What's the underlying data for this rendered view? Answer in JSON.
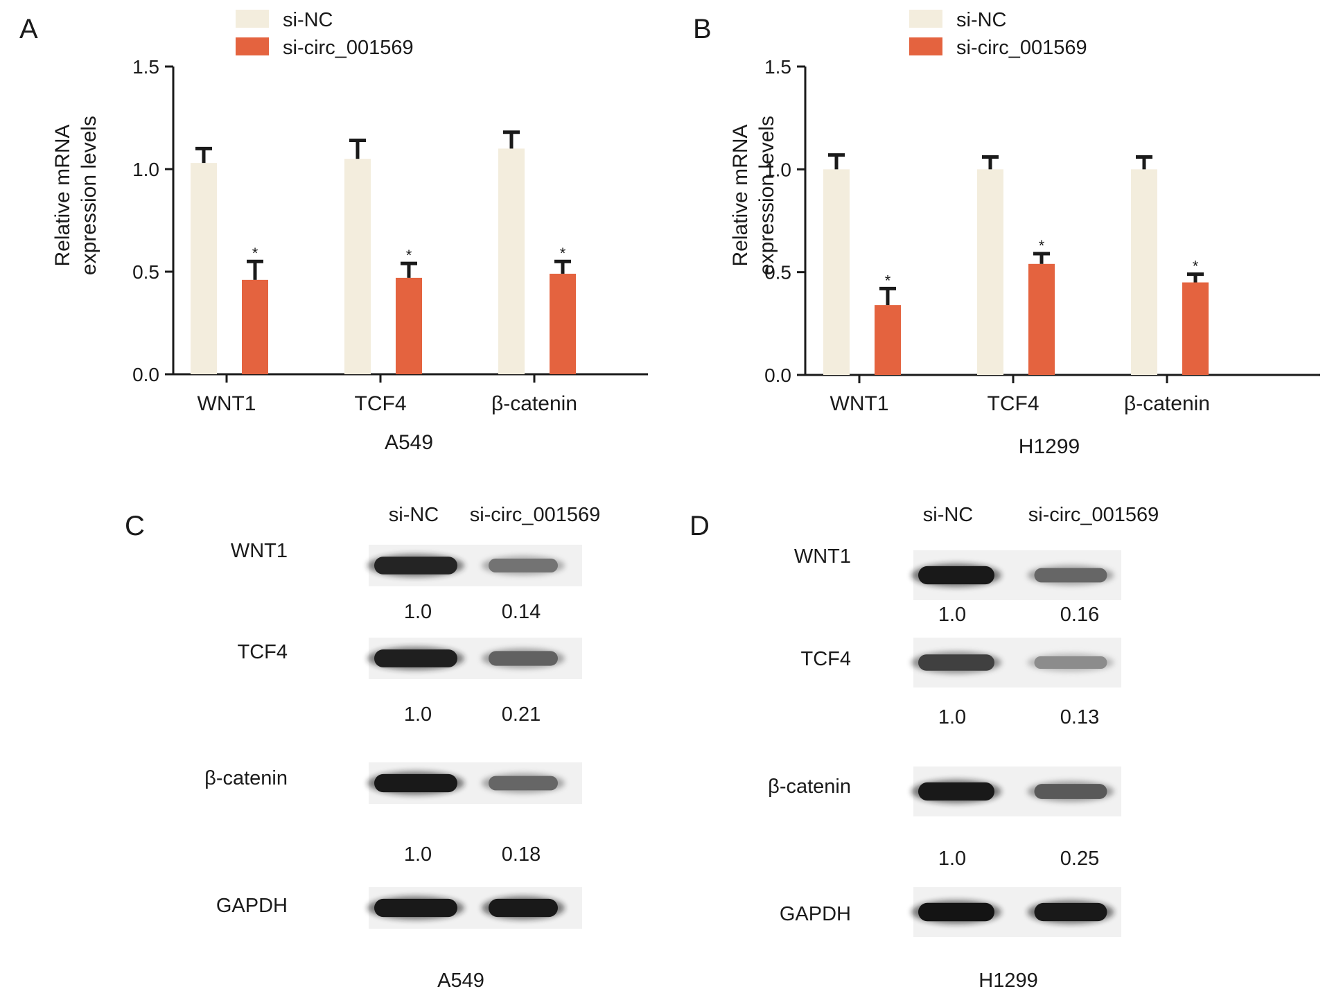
{
  "colors": {
    "si_nc": "#f3eddd",
    "si_circ": "#e4633f",
    "axis": "#1a1a1a"
  },
  "chart_data": [
    {
      "panel": "A",
      "type": "bar",
      "xlabel": "A549",
      "ylabel": [
        "Relative mRNA",
        "expression levels"
      ],
      "ylim": [
        0,
        1.5
      ],
      "yticks": [
        "0.0",
        "0.5",
        "1.0",
        "1.5"
      ],
      "categories": [
        "WNT1",
        "TCF4",
        "β-catenin"
      ],
      "legend": "top",
      "series": [
        {
          "name": "si-NC",
          "values": [
            1.03,
            1.05,
            1.1
          ],
          "errors": [
            0.07,
            0.09,
            0.08
          ],
          "sig": [
            "",
            "",
            ""
          ]
        },
        {
          "name": "si-circ_001569",
          "values": [
            0.46,
            0.47,
            0.49
          ],
          "errors": [
            0.09,
            0.07,
            0.06
          ],
          "sig": [
            "*",
            "*",
            "*"
          ]
        }
      ]
    },
    {
      "panel": "B",
      "type": "bar",
      "xlabel": "H1299",
      "ylabel": [
        "Relative mRNA",
        "expression levels"
      ],
      "ylim": [
        0,
        1.5
      ],
      "yticks": [
        "0.0",
        "0.5",
        "1.0",
        "1.5"
      ],
      "categories": [
        "WNT1",
        "TCF4",
        "β-catenin"
      ],
      "legend": "top",
      "series": [
        {
          "name": "si-NC",
          "values": [
            1.0,
            1.0,
            1.0
          ],
          "errors": [
            0.07,
            0.06,
            0.06
          ],
          "sig": [
            "",
            "",
            ""
          ]
        },
        {
          "name": "si-circ_001569",
          "values": [
            0.34,
            0.54,
            0.45
          ],
          "errors": [
            0.08,
            0.05,
            0.04
          ],
          "sig": [
            "*",
            "*",
            "*"
          ]
        }
      ]
    }
  ],
  "blots": [
    {
      "panel": "C",
      "cell_line": "A549",
      "columns": [
        "si-NC",
        "si-circ_001569"
      ],
      "rows": [
        {
          "label": "WNT1",
          "quant": [
            "1.0",
            "0.14"
          ],
          "intensity": [
            0.86,
            0.55
          ]
        },
        {
          "label": "TCF4",
          "quant": [
            "1.0",
            "0.21"
          ],
          "intensity": [
            0.88,
            0.62
          ]
        },
        {
          "label": "β-catenin",
          "quant": [
            "1.0",
            "0.18"
          ],
          "intensity": [
            0.9,
            0.6
          ]
        },
        {
          "label": "GAPDH",
          "quant": [],
          "intensity": [
            0.9,
            0.9
          ]
        }
      ]
    },
    {
      "panel": "D",
      "cell_line": "H1299",
      "columns": [
        "si-NC",
        "si-circ_001569"
      ],
      "rows": [
        {
          "label": "WNT1",
          "quant": [
            "1.0",
            "0.16"
          ],
          "intensity": [
            0.9,
            0.6
          ]
        },
        {
          "label": "TCF4",
          "quant": [
            "1.0",
            "0.13"
          ],
          "intensity": [
            0.75,
            0.45
          ]
        },
        {
          "label": "β-catenin",
          "quant": [
            "1.0",
            "0.25"
          ],
          "intensity": [
            0.9,
            0.65
          ]
        },
        {
          "label": "GAPDH",
          "quant": [],
          "intensity": [
            0.92,
            0.9
          ]
        }
      ]
    }
  ]
}
